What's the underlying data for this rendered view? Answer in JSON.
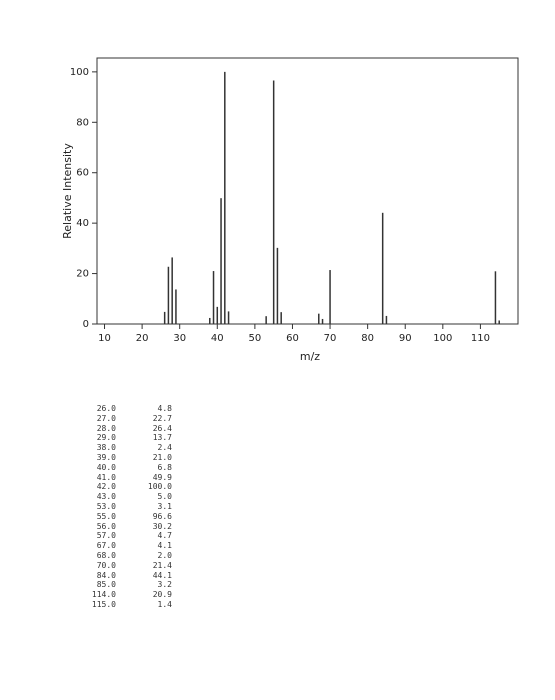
{
  "chart_data": {
    "type": "bar",
    "x_label": "m/z",
    "y_label": "Relative Intensity",
    "x": [
      26,
      27,
      28,
      29,
      38,
      39,
      40,
      41,
      42,
      43,
      53,
      55,
      56,
      57,
      67,
      68,
      70,
      84,
      85,
      114,
      115
    ],
    "values": [
      4.8,
      22.7,
      26.4,
      13.7,
      2.4,
      21.0,
      6.8,
      49.9,
      100.0,
      5.0,
      3.1,
      96.6,
      30.2,
      4.7,
      4.1,
      2.0,
      21.4,
      44.1,
      3.2,
      20.9,
      1.4
    ],
    "color": "#333333",
    "xlim": [
      8,
      120
    ],
    "ylim": [
      0,
      105.5
    ],
    "xticks": [
      10,
      20,
      30,
      40,
      50,
      60,
      70,
      80,
      90,
      100,
      110
    ],
    "yticks": [
      0,
      20,
      40,
      60,
      80,
      100
    ]
  },
  "table": {
    "rows": [
      [
        "26.0",
        "4.8"
      ],
      [
        "27.0",
        "22.7"
      ],
      [
        "28.0",
        "26.4"
      ],
      [
        "29.0",
        "13.7"
      ],
      [
        "38.0",
        "2.4"
      ],
      [
        "39.0",
        "21.0"
      ],
      [
        "40.0",
        "6.8"
      ],
      [
        "41.0",
        "49.9"
      ],
      [
        "42.0",
        "100.0"
      ],
      [
        "43.0",
        "5.0"
      ],
      [
        "53.0",
        "3.1"
      ],
      [
        "55.0",
        "96.6"
      ],
      [
        "56.0",
        "30.2"
      ],
      [
        "57.0",
        "4.7"
      ],
      [
        "67.0",
        "4.1"
      ],
      [
        "68.0",
        "2.0"
      ],
      [
        "70.0",
        "21.4"
      ],
      [
        "84.0",
        "44.1"
      ],
      [
        "85.0",
        "3.2"
      ],
      [
        "114.0",
        "20.9"
      ],
      [
        "115.0",
        "1.4"
      ]
    ]
  }
}
